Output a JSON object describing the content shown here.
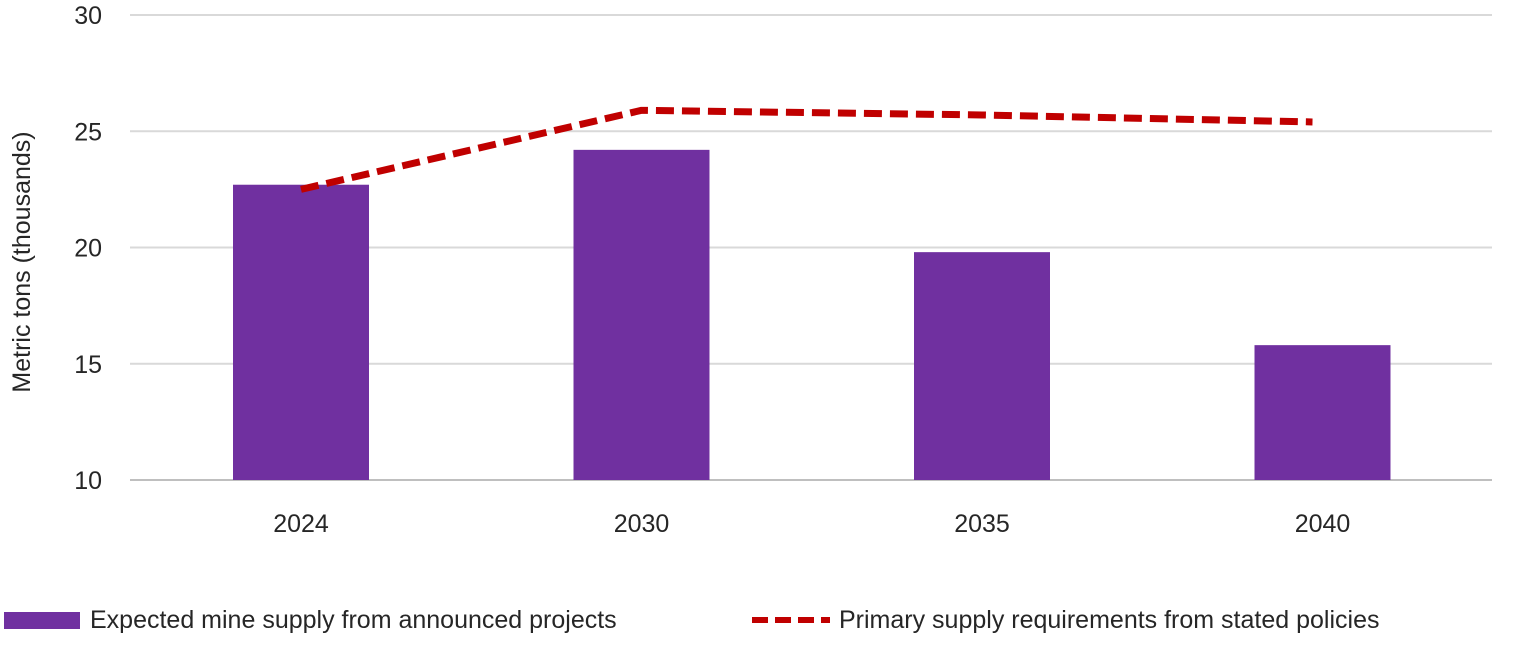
{
  "chart_data": {
    "type": "bar",
    "categories": [
      "2024",
      "2030",
      "2035",
      "2040"
    ],
    "ylabel": "Metric tons (thousands)",
    "xlabel": "",
    "ylim": [
      10,
      30
    ],
    "yticks": [
      10,
      15,
      20,
      25,
      30
    ],
    "grid": true,
    "legend_placement": "bottom",
    "series": [
      {
        "name": "Expected mine supply from announced projects",
        "kind": "bar",
        "color": "#7030A0",
        "values": [
          22.7,
          24.2,
          19.8,
          15.8
        ]
      },
      {
        "name": "Primary supply requirements from stated policies",
        "kind": "line",
        "style": "dashed",
        "color": "#C00000",
        "values": [
          22.5,
          25.9,
          25.7,
          25.4
        ]
      }
    ]
  }
}
